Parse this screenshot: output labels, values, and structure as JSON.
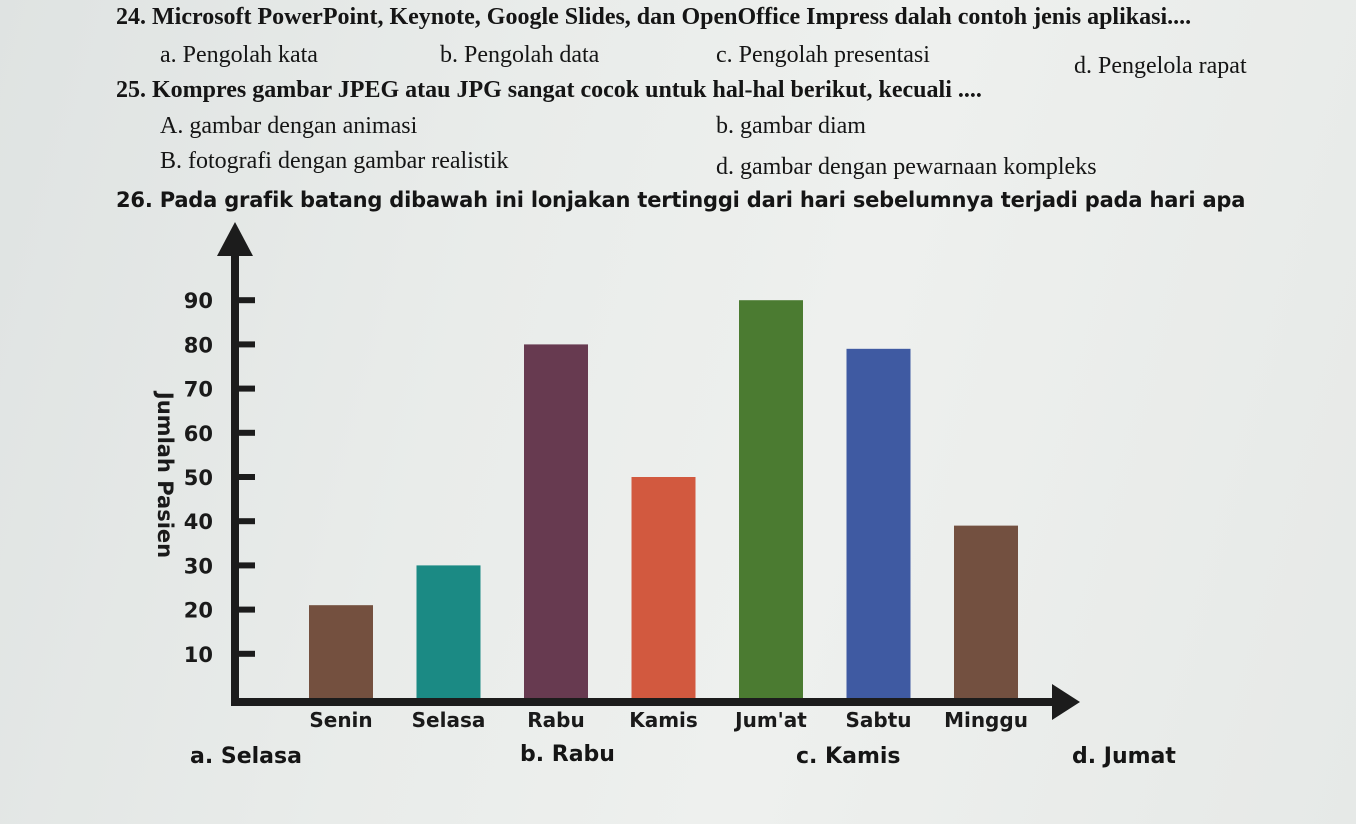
{
  "q24": {
    "question": "24. Microsoft PowerPoint, Keynote, Google Slides, dan OpenOffice Impress dalah contoh jenis aplikasi....",
    "options": [
      "a. Pengolah kata",
      "b. Pengolah data",
      "c. Pengolah presentasi",
      "d. Pengelola rapat"
    ]
  },
  "q25": {
    "question": "25. Kompres gambar JPEG atau JPG sangat cocok untuk hal-hal berikut, kecuali ....",
    "options": [
      "A.  gambar dengan animasi",
      "b. gambar diam",
      "B.  fotografi dengan gambar realistik",
      "d. gambar dengan pewarnaan kompleks"
    ]
  },
  "q26": {
    "question": "26. Pada grafik batang dibawah ini lonjakan tertinggi dari hari sebelumnya terjadi pada hari apa",
    "options": [
      "a.   Selasa",
      "b. Rabu",
      "c. Kamis",
      "d. Jumat"
    ]
  },
  "chart_data": {
    "type": "bar",
    "title": "",
    "xlabel": "",
    "ylabel": "Jumlah Pasien",
    "ylim": [
      0,
      100
    ],
    "yticks": [
      "10",
      "20",
      "30",
      "40",
      "50",
      "60",
      "70",
      "80",
      "90"
    ],
    "categories": [
      "Senin",
      "Selasa",
      "Rabu",
      "Kamis",
      "Jum'at",
      "Sabtu",
      "Minggu"
    ],
    "values": [
      21,
      30,
      80,
      50,
      90,
      79,
      39
    ],
    "colors": [
      "#74503f",
      "#1b8a84",
      "#673a50",
      "#d2593f",
      "#4b7b31",
      "#3f5aa2",
      "#735040"
    ],
    "grid": false,
    "legend": "none"
  }
}
